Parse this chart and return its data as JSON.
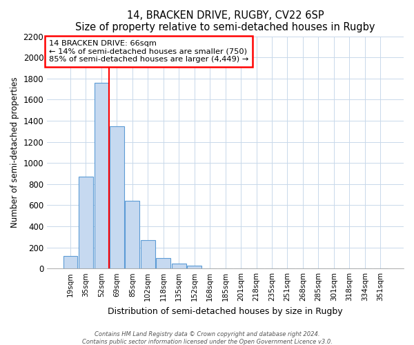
{
  "title": "14, BRACKEN DRIVE, RUGBY, CV22 6SP",
  "subtitle": "Size of property relative to semi-detached houses in Rugby",
  "xlabel": "Distribution of semi-detached houses by size in Rugby",
  "ylabel": "Number of semi-detached properties",
  "bar_labels": [
    "19sqm",
    "35sqm",
    "52sqm",
    "69sqm",
    "85sqm",
    "102sqm",
    "118sqm",
    "135sqm",
    "152sqm",
    "168sqm",
    "185sqm",
    "201sqm",
    "218sqm",
    "235sqm",
    "251sqm",
    "268sqm",
    "285sqm",
    "301sqm",
    "318sqm",
    "334sqm",
    "351sqm"
  ],
  "bar_values": [
    120,
    870,
    1760,
    1350,
    645,
    270,
    100,
    50,
    30,
    0,
    0,
    0,
    0,
    0,
    0,
    0,
    0,
    0,
    0,
    0,
    0
  ],
  "bar_color": "#c6d9f0",
  "bar_edge_color": "#5b9bd5",
  "vline_color": "red",
  "vline_x": 2.5,
  "ylim": [
    0,
    2200
  ],
  "yticks": [
    0,
    200,
    400,
    600,
    800,
    1000,
    1200,
    1400,
    1600,
    1800,
    2000,
    2200
  ],
  "annotation_title": "14 BRACKEN DRIVE: 66sqm",
  "annotation_line1": "← 14% of semi-detached houses are smaller (750)",
  "annotation_line2": "85% of semi-detached houses are larger (4,449) →",
  "footer1": "Contains HM Land Registry data © Crown copyright and database right 2024.",
  "footer2": "Contains public sector information licensed under the Open Government Licence v3.0."
}
